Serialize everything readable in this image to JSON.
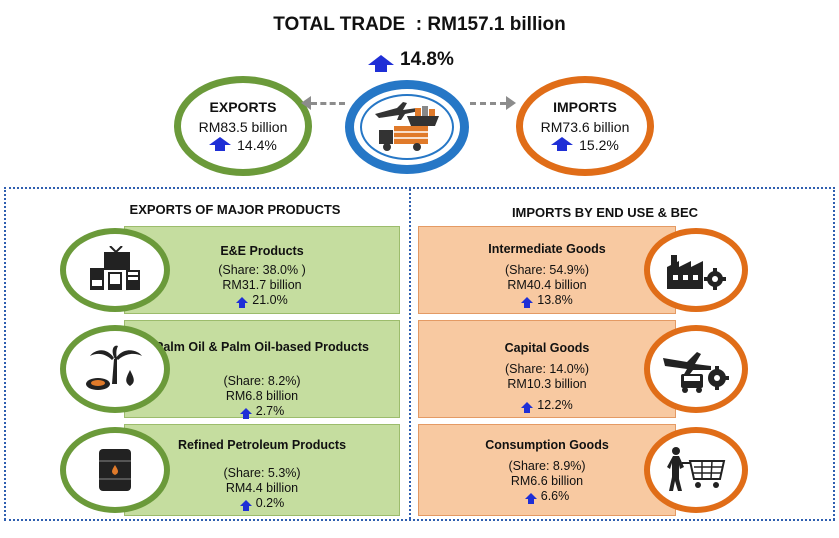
{
  "header": {
    "title": "TOTAL TRADE",
    "value": ": RM157.1 billion",
    "growth": "14.8%"
  },
  "exports": {
    "title": "EXPORTS",
    "value": "RM83.5 billion",
    "growth": "14.4%"
  },
  "imports": {
    "title": "IMPORTS",
    "value": "RM73.6 billion",
    "growth": "15.2%"
  },
  "exports_section": {
    "title": "EXPORTS OF MAJOR PRODUCTS",
    "items": [
      {
        "name": "E&E Products",
        "share": "(Share: 38.0% )",
        "value": "RM31.7 billion",
        "growth": "21.0%",
        "icon": "electronics-icon"
      },
      {
        "name": "Palm Oil & Palm Oil-based Products",
        "share": "(Share: 8.2%)",
        "value": "RM6.8 billion",
        "growth": "2.7%",
        "icon": "palm-oil-icon"
      },
      {
        "name": "Refined Petroleum Products",
        "share": "(Share: 5.3%)",
        "value": "RM4.4 billion",
        "growth": "0.2%",
        "icon": "oil-barrel-icon"
      }
    ]
  },
  "imports_section": {
    "title": "IMPORTS BY END USE & BEC",
    "items": [
      {
        "name": "Intermediate Goods",
        "share": "(Share: 54.9%)",
        "value": "RM40.4 billion",
        "growth": "13.8%",
        "icon": "factory-icon"
      },
      {
        "name": "Capital Goods",
        "share": "(Share: 14.0%)",
        "value": "RM10.3 billion",
        "growth": "12.2%",
        "icon": "machinery-icon"
      },
      {
        "name": "Consumption Goods",
        "share": "(Share: 8.9%)",
        "value": "RM6.6 billion",
        "growth": "6.6%",
        "icon": "shopping-cart-icon"
      }
    ]
  },
  "colors": {
    "export_accent": "#6b9a3a",
    "import_accent": "#e06d18",
    "center_accent": "#2677c6",
    "growth_arrow": "#1f2fd6",
    "export_card": "#c5dd9f",
    "import_card": "#f8c9a1"
  }
}
